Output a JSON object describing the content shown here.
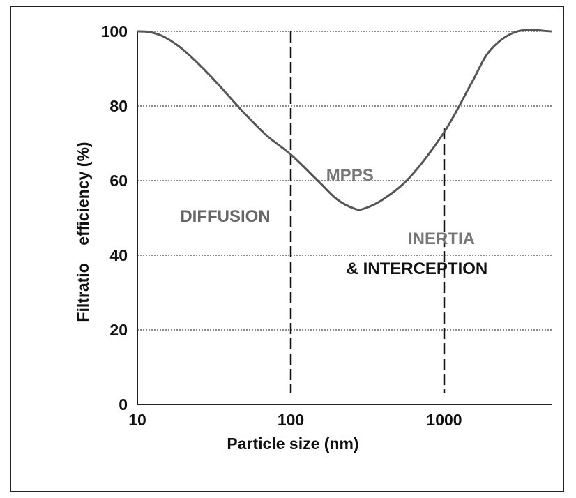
{
  "chart_data": {
    "type": "line",
    "xlabel": "Particle size (nm)",
    "ylabel": "Filtratio    efficiency (%)",
    "x_scale": "log",
    "xlim": [
      10,
      5000
    ],
    "ylim": [
      0,
      100
    ],
    "x_ticks": [
      10,
      100,
      1000
    ],
    "x_tick_labels": [
      "10",
      "100",
      "1000"
    ],
    "y_ticks": [
      0,
      20,
      40,
      60,
      80,
      100
    ],
    "y_tick_labels": [
      "0",
      "20",
      "40",
      "60",
      "80",
      "100"
    ],
    "grid": true,
    "series": [
      {
        "x": [
          10,
          12,
          15,
          20,
          30,
          50,
          70,
          100,
          150,
          200,
          260,
          300,
          400,
          600,
          1000,
          1500,
          2000,
          3000,
          5000
        ],
        "y": [
          100,
          99.8,
          98.5,
          95,
          88,
          78,
          72,
          67,
          60,
          55,
          52.5,
          52.5,
          55,
          61,
          73,
          86,
          95,
          100,
          100
        ]
      }
    ],
    "reference_lines": [
      {
        "x": 100,
        "y_from": 3,
        "y_to": 100
      },
      {
        "x": 1000,
        "y_from": 3,
        "y_to": 74
      }
    ],
    "annotations": [
      {
        "text": "DIFFUSION",
        "x": 19,
        "y": 49,
        "color": "#666666"
      },
      {
        "text": "MPPS",
        "x": 170,
        "y": 60,
        "color": "#777777"
      },
      {
        "text": "INERTIA",
        "x": 580,
        "y": 43,
        "color": "#777777"
      },
      {
        "text": "& INTERCEPTION",
        "x": 230,
        "y": 35,
        "color": "#111111"
      }
    ],
    "colors": {
      "curve": "#555555",
      "grid": "#444444",
      "axis": "#222222"
    }
  }
}
